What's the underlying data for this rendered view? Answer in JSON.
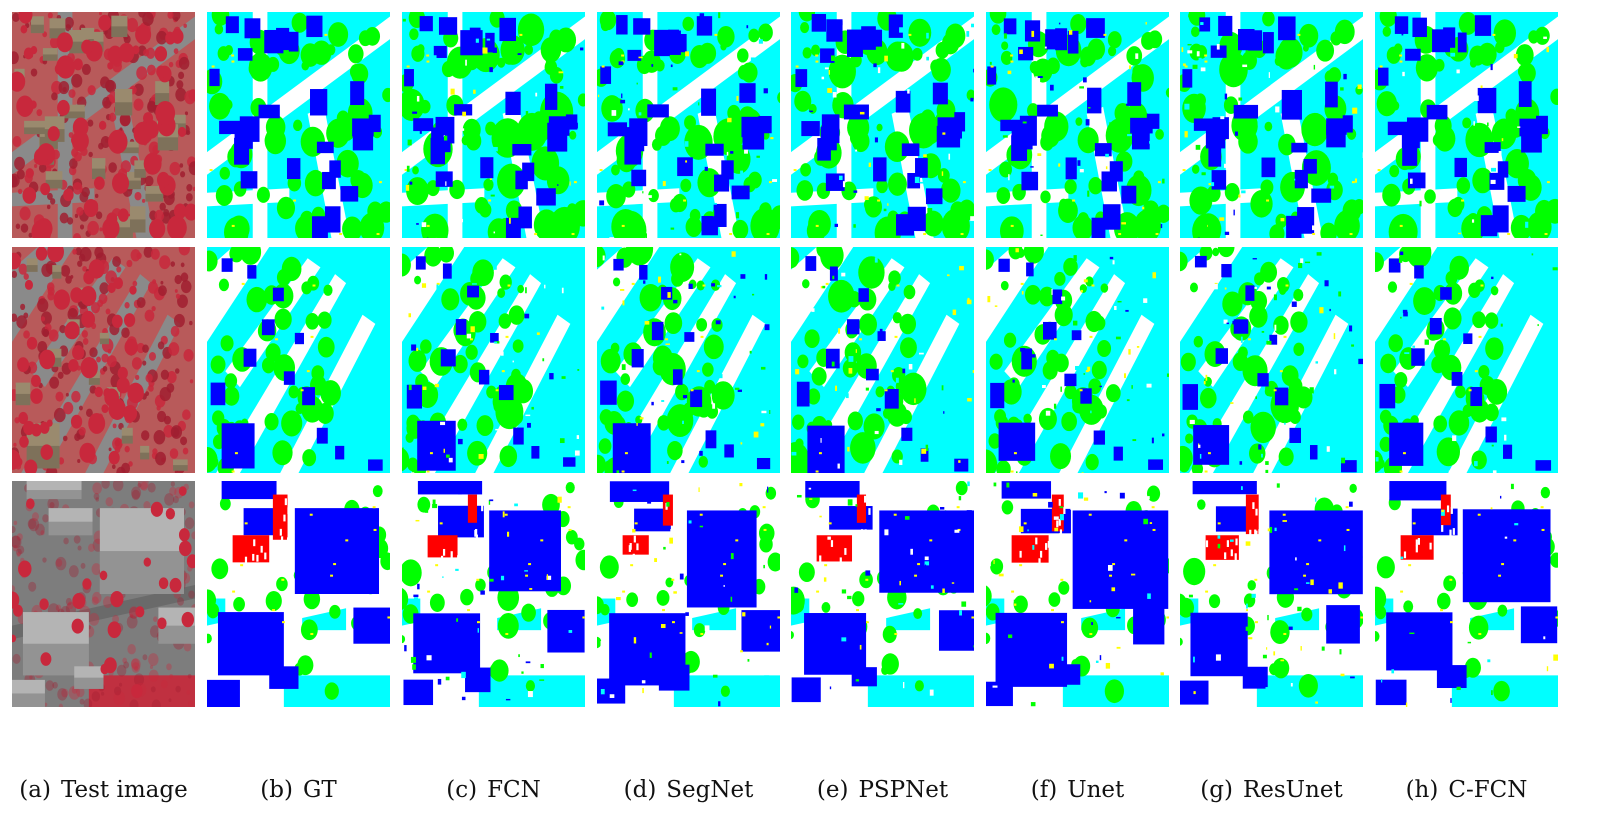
{
  "figure": {
    "columns": [
      {
        "id": "a",
        "tag": "(a)",
        "label": "Test image",
        "kind": "photo"
      },
      {
        "id": "b",
        "tag": "(b)",
        "label": "GT",
        "kind": "seg"
      },
      {
        "id": "c",
        "tag": "(c)",
        "label": "FCN",
        "kind": "seg"
      },
      {
        "id": "d",
        "tag": "(d)",
        "label": "SegNet",
        "kind": "seg"
      },
      {
        "id": "e",
        "tag": "(e)",
        "label": "PSPNet",
        "kind": "seg"
      },
      {
        "id": "f",
        "tag": "(f)",
        "label": "Unet",
        "kind": "seg"
      },
      {
        "id": "g",
        "tag": "(g)",
        "label": "ResUnet",
        "kind": "seg"
      },
      {
        "id": "h",
        "tag": "(h)",
        "label": "C-FCN",
        "kind": "seg"
      }
    ],
    "rows": [
      {
        "id": "row1"
      },
      {
        "id": "row2"
      },
      {
        "id": "row3"
      }
    ],
    "palette": {
      "impervious": "#ffffff",
      "building": "#0000ff",
      "low_vegetation": "#00ffff",
      "tree": "#00ff00",
      "car": "#ffff00",
      "clutter": "#ff0000",
      "photo_tree": "#c8283c",
      "photo_road": "#8a8a8a",
      "photo_roof": "#9a8a6e",
      "photo_ground": "#b85a5a"
    }
  }
}
